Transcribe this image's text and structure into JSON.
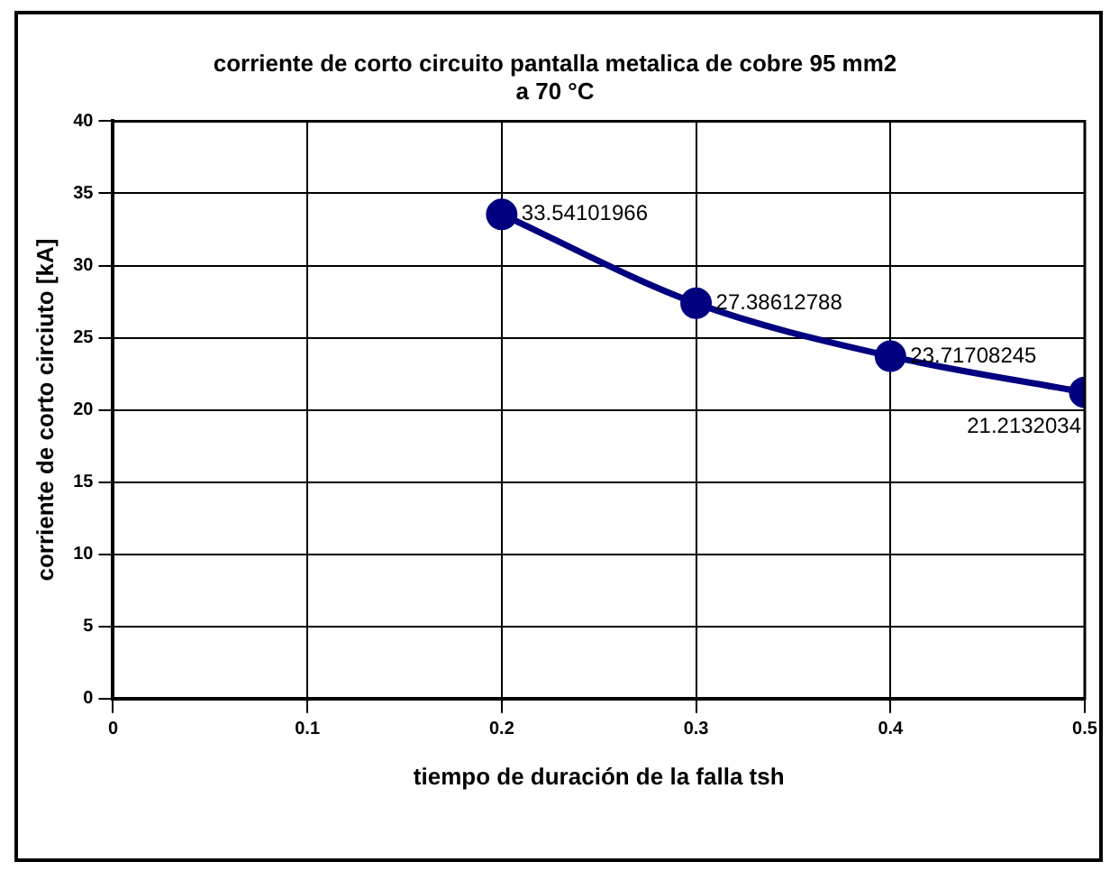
{
  "chart_data": {
    "type": "line",
    "title": "corriente de corto circuito pantalla metalica de cobre 95 mm2\na 70 °C",
    "xlabel": "tiempo de duración de la falla tsh",
    "ylabel": "corriente de corto circiuto [kA]",
    "x": [
      0.2,
      0.3,
      0.4,
      0.5
    ],
    "series": [
      {
        "color": "#000080",
        "values": [
          33.54101966,
          27.38612788,
          23.71708245,
          21.2132034
        ]
      }
    ],
    "xlim": [
      0,
      0.5
    ],
    "xticks": [
      0,
      0.1,
      0.2,
      0.3,
      0.4,
      0.5
    ],
    "ylim": [
      0,
      40
    ],
    "yticks": [
      0,
      5,
      10,
      15,
      20,
      25,
      30,
      35,
      40
    ],
    "grid": true,
    "legend": false,
    "marker": "circle",
    "line_style": "solid",
    "data_labels": true
  }
}
